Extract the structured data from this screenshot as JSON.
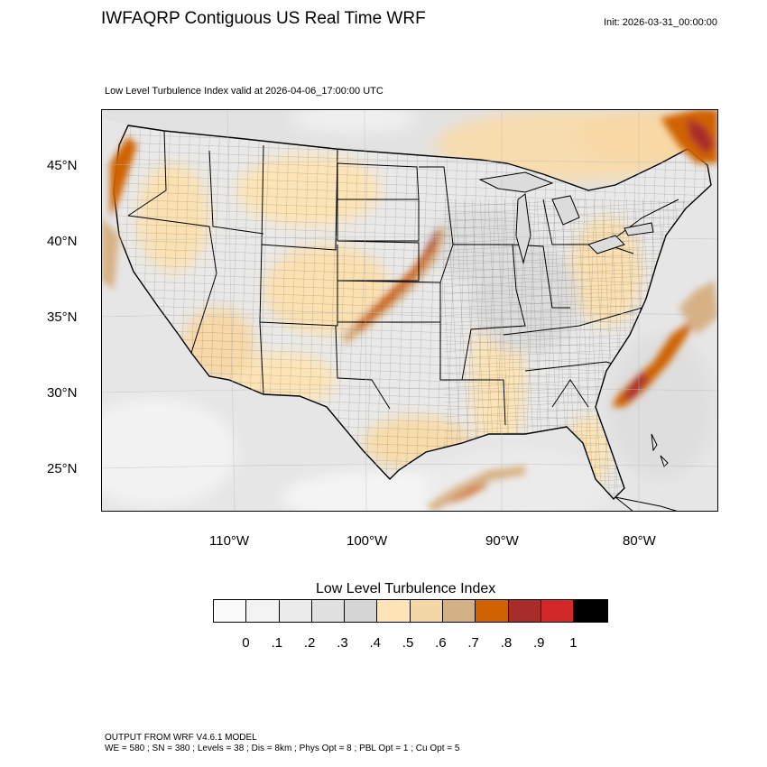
{
  "header": {
    "title": "IWFAQRP Contiguous US Real Time WRF",
    "init": "Init: 2026-03-31_00:00:00",
    "subtitle": "Low Level Turbulence Index valid at 2026-04-06_17:00:00 UTC"
  },
  "map": {
    "lat_labels": [
      "45°N",
      "40°N",
      "35°N",
      "30°N",
      "25°N"
    ],
    "lon_labels": [
      "110°W",
      "100°W",
      "90°W",
      "80°W"
    ],
    "extent": {
      "lon": [
        -118.5,
        -73.5
      ],
      "lat": [
        22,
        48.5
      ]
    },
    "features": {
      "ocean_color": "#e8e8e8",
      "land_base_color": "#ececec",
      "state_borders": true,
      "county_borders": true,
      "high_turbulence_zones": [
        "Kansas–Missouri diagonal band",
        "Atlantic coast east of Carolinas",
        "Gulf of Mexico south of Louisiana",
        "Northeast Maine/Canada",
        "Pacific Northwest coast"
      ]
    }
  },
  "colorbar": {
    "title": "Low Level Turbulence Index",
    "labels": [
      "0",
      ".1",
      ".2",
      ".3",
      ".4",
      ".5",
      ".6",
      ".7",
      ".8",
      ".9",
      "1"
    ],
    "colors": [
      "#fafafa",
      "#f3f3f3",
      "#ebebeb",
      "#e1e1e1",
      "#d6d6d6",
      "#fde4b6",
      "#f3d8a6",
      "#d4b185",
      "#d06202",
      "#a82c2a",
      "#d42828",
      "#000000"
    ]
  },
  "footer": {
    "line1": "OUTPUT FROM WRF V4.6.1 MODEL",
    "line2": "WE = 580 ; SN = 380 ; Levels = 38 ; Dis = 8km ; Phys Opt = 8 ; PBL Opt = 1 ; Cu Opt = 5"
  }
}
